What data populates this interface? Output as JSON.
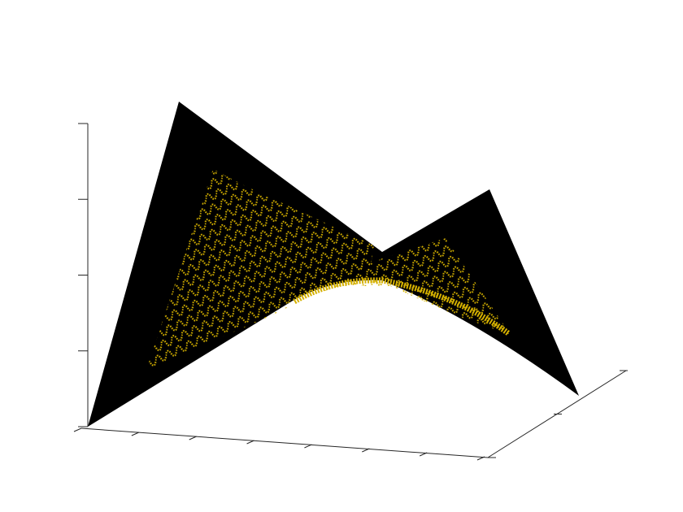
{
  "chart_data": {
    "type": "surface",
    "xlim": [
      0,
      7
    ],
    "xticks": [
      0,
      1,
      2,
      3,
      4,
      5,
      6,
      7
    ],
    "ylim": [
      0,
      2
    ],
    "yticks": [
      0,
      1,
      2
    ],
    "zlim": [
      0,
      4
    ],
    "zticks": [
      0,
      1,
      2,
      3,
      4
    ],
    "surface_color": "#000000",
    "marker_color": "#d4b000",
    "grid": false
  }
}
